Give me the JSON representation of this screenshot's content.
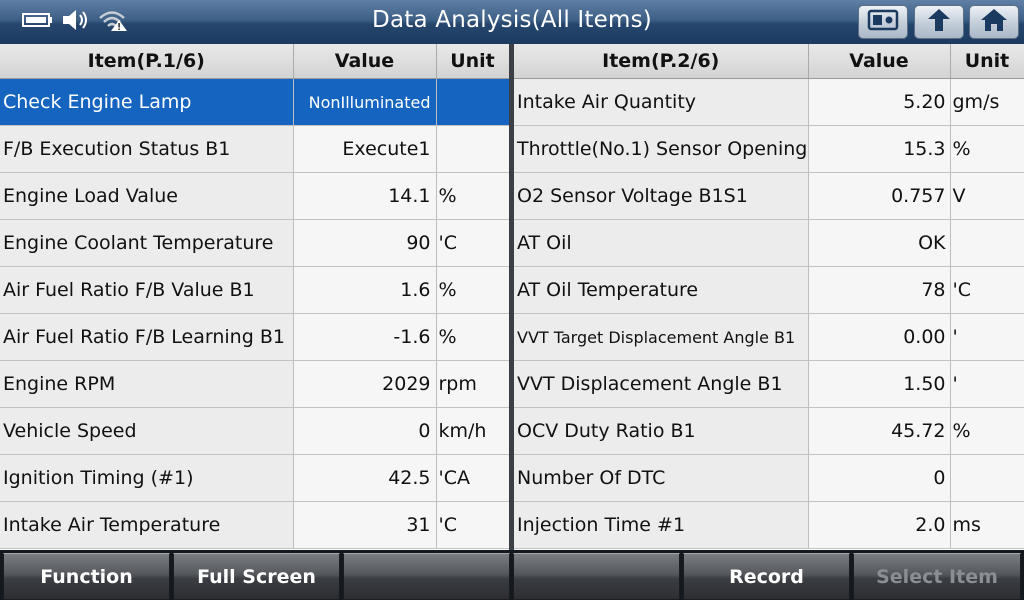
{
  "title": "Data Analysis(All Items)",
  "status_icons": [
    "battery-icon",
    "speaker-icon",
    "wifi-warning-icon"
  ],
  "nav_buttons": [
    "screen-capture-icon",
    "back-arrow-icon",
    "home-icon"
  ],
  "left_table": {
    "headers": {
      "item": "Item(P.1/6)",
      "value": "Value",
      "unit": "Unit"
    },
    "rows": [
      {
        "item": "Check Engine Lamp",
        "value": "NonIlluminated",
        "unit": ""
      },
      {
        "item": "F/B Execution Status B1",
        "value": "Execute1",
        "unit": ""
      },
      {
        "item": "Engine Load Value",
        "value": "14.1",
        "unit": "%"
      },
      {
        "item": "Engine Coolant Temperature",
        "value": "90",
        "unit": "'C"
      },
      {
        "item": "Air Fuel Ratio F/B Value B1",
        "value": "1.6",
        "unit": "%"
      },
      {
        "item": "Air Fuel Ratio F/B Learning B1",
        "value": "-1.6",
        "unit": "%"
      },
      {
        "item": "Engine RPM",
        "value": "2029",
        "unit": "rpm"
      },
      {
        "item": "Vehicle Speed",
        "value": "0",
        "unit": "km/h"
      },
      {
        "item": "Ignition Timing (#1)",
        "value": "42.5",
        "unit": "'CA"
      },
      {
        "item": "Intake Air Temperature",
        "value": "31",
        "unit": "'C"
      }
    ]
  },
  "right_table": {
    "headers": {
      "item": "Item(P.2/6)",
      "value": "Value",
      "unit": "Unit"
    },
    "rows": [
      {
        "item": "Intake Air Quantity",
        "value": "5.20",
        "unit": "gm/s"
      },
      {
        "item": "Throttle(No.1) Sensor Opening",
        "value": "15.3",
        "unit": "%"
      },
      {
        "item": "O2 Sensor Voltage B1S1",
        "value": "0.757",
        "unit": "V"
      },
      {
        "item": "AT Oil",
        "value": "OK",
        "unit": ""
      },
      {
        "item": "AT Oil Temperature",
        "value": "78",
        "unit": "'C"
      },
      {
        "item": "VVT Target Displacement Angle B1",
        "value": "0.00",
        "unit": "'"
      },
      {
        "item": "VVT Displacement Angle B1",
        "value": "1.50",
        "unit": "'"
      },
      {
        "item": "OCV Duty Ratio B1",
        "value": "45.72",
        "unit": "%"
      },
      {
        "item": "Number Of DTC",
        "value": "0",
        "unit": ""
      },
      {
        "item": "Injection Time #1",
        "value": "2.0",
        "unit": "ms"
      }
    ]
  },
  "bottom_buttons": [
    "Function",
    "Full Screen",
    "",
    "",
    "Record",
    "Select Item"
  ],
  "colors": {
    "selected_row": "#1464c0",
    "title_bar": "#2a4a70"
  }
}
